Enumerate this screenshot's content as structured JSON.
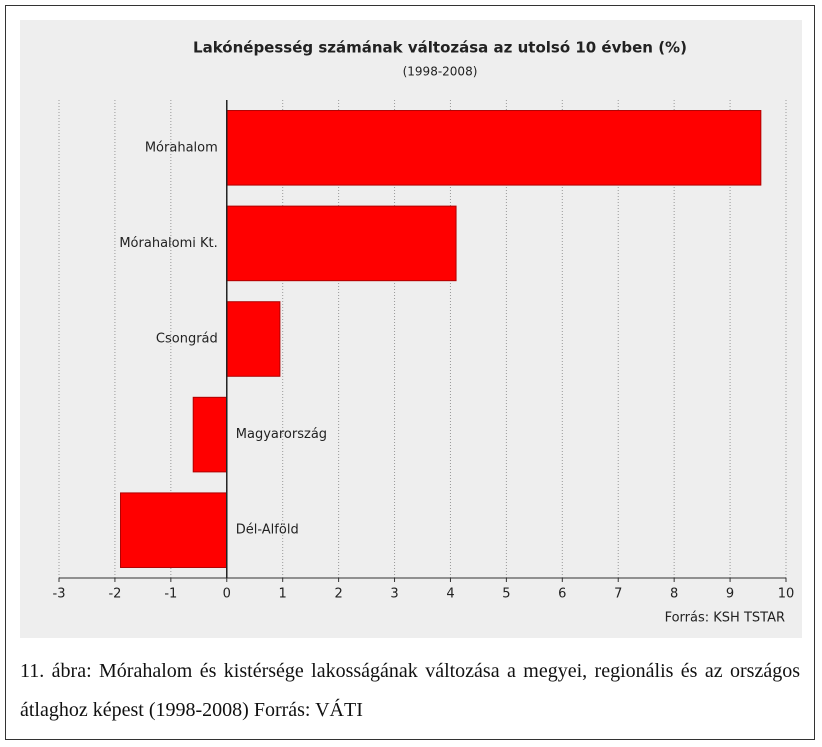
{
  "chart_data": {
    "type": "barh",
    "title": "Lakónépesség számának változása az utolsó 10 évben (%)",
    "subtitle": "(1998-2008)",
    "categories": [
      "Mórahalom",
      "Mórahalomi Kt.",
      "Csongrád",
      "Magyarország",
      "Dél-Alföld"
    ],
    "values": [
      9.55,
      4.1,
      0.95,
      -0.6,
      -1.9
    ],
    "color": "#ff0000",
    "xlim": [
      -3,
      10
    ],
    "xticks": [
      -3,
      -2,
      -1,
      0,
      1,
      2,
      3,
      4,
      5,
      6,
      7,
      8,
      9,
      10
    ],
    "grid": true,
    "source": "Forrás: KSH TSTAR"
  },
  "caption": "11. ábra: Mórahalom és kistérsége lakosságának változása a megyei, regionális és az országos átlaghoz képest (1998-2008) Forrás: VÁTI"
}
